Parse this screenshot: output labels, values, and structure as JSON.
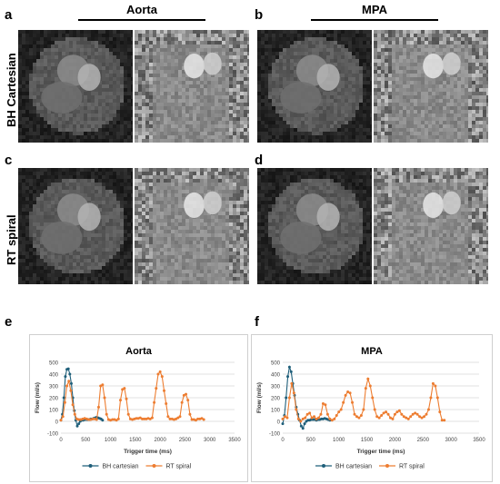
{
  "panels": {
    "a": "a",
    "b": "b",
    "c": "c",
    "d": "d",
    "e": "e",
    "f": "f"
  },
  "columns": {
    "left": "Aorta",
    "right": "MPA"
  },
  "rows": {
    "top": "BH Cartesian",
    "bottom": "RT spiral"
  },
  "colors": {
    "bh": "#1f5f7a",
    "rt": "#ed7d31",
    "grid": "#d9d9d9"
  },
  "chart_data": [
    {
      "type": "line",
      "title": "Aorta",
      "xlabel": "Trigger time (ms)",
      "ylabel": "Flow (ml/s)",
      "xlim": [
        0,
        3500
      ],
      "ylim": [
        -100,
        500
      ],
      "xticks": [
        0,
        500,
        1000,
        1500,
        2000,
        2500,
        3000,
        3500
      ],
      "yticks": [
        -100,
        0,
        100,
        200,
        300,
        400,
        500
      ],
      "legend_position": "bottom",
      "series": [
        {
          "name": "BH cartesian",
          "color": "#1f5f7a",
          "x": [
            0,
            30,
            60,
            90,
            120,
            150,
            180,
            210,
            240,
            270,
            300,
            330,
            360,
            390,
            420,
            450,
            480,
            510,
            540,
            570,
            600,
            630,
            660,
            690,
            720,
            750,
            780,
            810,
            840
          ],
          "y": [
            10,
            60,
            200,
            380,
            440,
            445,
            400,
            320,
            200,
            90,
            10,
            -40,
            -20,
            0,
            10,
            10,
            15,
            15,
            15,
            15,
            20,
            20,
            25,
            30,
            35,
            30,
            25,
            20,
            10
          ]
        },
        {
          "name": "RT spiral",
          "color": "#ed7d31",
          "x": [
            0,
            40,
            80,
            120,
            160,
            200,
            240,
            280,
            320,
            360,
            400,
            440,
            480,
            520,
            560,
            600,
            640,
            680,
            720,
            760,
            800,
            840,
            880,
            920,
            960,
            1000,
            1040,
            1080,
            1120,
            1160,
            1200,
            1240,
            1280,
            1320,
            1360,
            1400,
            1440,
            1480,
            1520,
            1560,
            1600,
            1640,
            1680,
            1720,
            1760,
            1800,
            1840,
            1880,
            1920,
            1960,
            2000,
            2040,
            2080,
            2120,
            2160,
            2200,
            2240,
            2280,
            2320,
            2360,
            2400,
            2440,
            2480,
            2520,
            2560,
            2600,
            2640,
            2680,
            2720,
            2760,
            2800,
            2840,
            2880
          ],
          "y": [
            10,
            40,
            160,
            300,
            340,
            260,
            140,
            60,
            20,
            15,
            15,
            20,
            25,
            20,
            15,
            15,
            20,
            20,
            15,
            120,
            300,
            310,
            200,
            60,
            15,
            10,
            15,
            15,
            10,
            20,
            180,
            270,
            280,
            190,
            60,
            20,
            15,
            20,
            25,
            25,
            30,
            20,
            20,
            20,
            25,
            20,
            30,
            160,
            280,
            400,
            420,
            380,
            260,
            150,
            40,
            20,
            20,
            15,
            20,
            30,
            40,
            160,
            220,
            230,
            180,
            60,
            15,
            15,
            10,
            20,
            20,
            25,
            15
          ]
        }
      ]
    },
    {
      "type": "line",
      "title": "MPA",
      "xlabel": "Trigger time (ms)",
      "ylabel": "Flow (ml/s)",
      "xlim": [
        0,
        3500
      ],
      "ylim": [
        -100,
        500
      ],
      "xticks": [
        0,
        500,
        1000,
        1500,
        2000,
        2500,
        3000,
        3500
      ],
      "yticks": [
        -100,
        0,
        100,
        200,
        300,
        400,
        500
      ],
      "legend_position": "bottom",
      "series": [
        {
          "name": "BH cartesian",
          "color": "#1f5f7a",
          "x": [
            0,
            30,
            60,
            90,
            120,
            150,
            180,
            210,
            240,
            270,
            300,
            330,
            360,
            390,
            420,
            450,
            480,
            510,
            540,
            570,
            600,
            630,
            660,
            690,
            720,
            750,
            780,
            810,
            840
          ],
          "y": [
            -20,
            50,
            200,
            380,
            460,
            420,
            320,
            220,
            120,
            60,
            10,
            -40,
            -60,
            -20,
            0,
            10,
            10,
            15,
            15,
            15,
            10,
            15,
            15,
            20,
            20,
            25,
            20,
            15,
            10
          ]
        },
        {
          "name": "RT spiral",
          "color": "#ed7d31",
          "x": [
            0,
            40,
            80,
            120,
            160,
            200,
            240,
            280,
            320,
            360,
            400,
            440,
            480,
            520,
            560,
            600,
            640,
            680,
            720,
            760,
            800,
            840,
            880,
            920,
            960,
            1000,
            1040,
            1080,
            1120,
            1160,
            1200,
            1240,
            1280,
            1320,
            1360,
            1400,
            1440,
            1480,
            1520,
            1560,
            1600,
            1640,
            1680,
            1720,
            1760,
            1800,
            1840,
            1880,
            1920,
            1960,
            2000,
            2040,
            2080,
            2120,
            2160,
            2200,
            2240,
            2280,
            2320,
            2360,
            2400,
            2440,
            2480,
            2520,
            2560,
            2600,
            2640,
            2680,
            2720,
            2760,
            2800,
            2840,
            2880
          ],
          "y": [
            20,
            40,
            30,
            200,
            320,
            240,
            100,
            20,
            0,
            20,
            30,
            60,
            70,
            30,
            40,
            20,
            30,
            60,
            150,
            140,
            60,
            20,
            10,
            20,
            50,
            80,
            100,
            160,
            220,
            250,
            240,
            160,
            60,
            40,
            30,
            50,
            100,
            280,
            360,
            300,
            200,
            100,
            40,
            30,
            50,
            70,
            80,
            60,
            30,
            20,
            60,
            80,
            90,
            60,
            40,
            30,
            20,
            40,
            60,
            70,
            60,
            40,
            30,
            40,
            60,
            100,
            200,
            320,
            300,
            200,
            80,
            10,
            10
          ]
        }
      ]
    }
  ]
}
